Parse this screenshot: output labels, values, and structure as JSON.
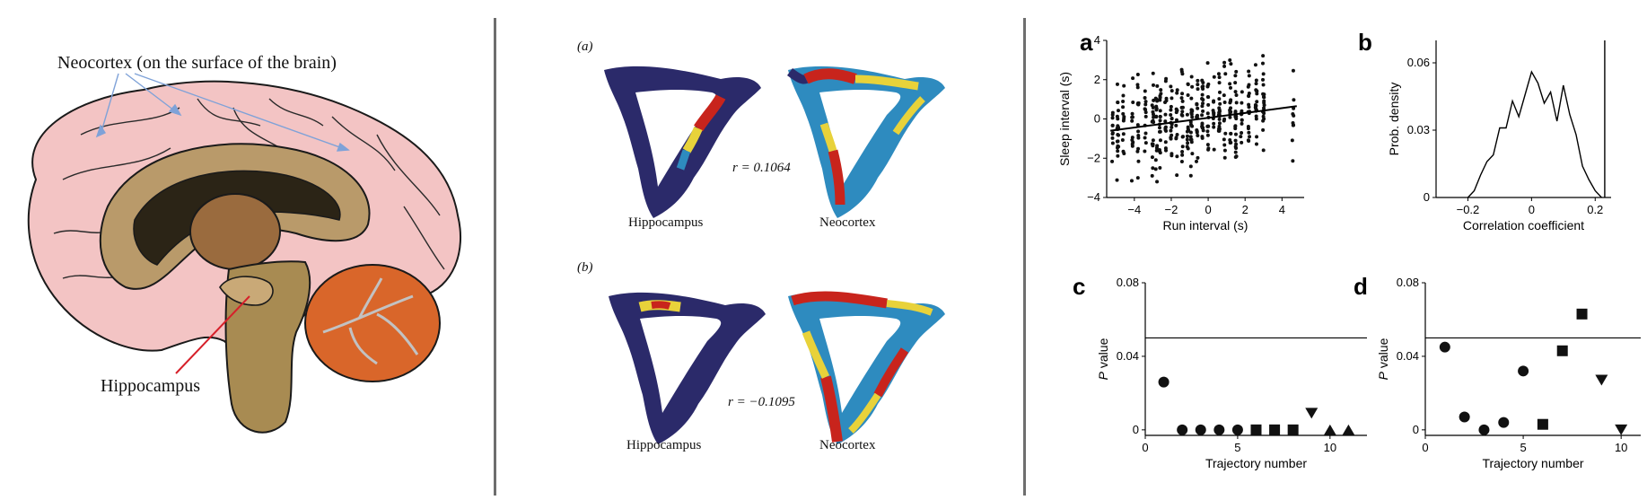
{
  "brain": {
    "neocortex_label": "Neocortex (on the surface of the brain)",
    "hippocampus_label": "Hippocampus",
    "colors": {
      "cortex": "#f3c4c4",
      "inner": "#b99a6a",
      "dark": "#2b2416",
      "thalamus": "#9a6b3e",
      "cerebellum": "#d9662a",
      "brainstem": "#a88b52",
      "pointer": "#d6202a",
      "arrows": "#7fa2d8"
    }
  },
  "trajectories": {
    "a": {
      "label": "(a)",
      "r_text": "r = 0.1064",
      "left": "Hippocampus",
      "right": "Neocortex"
    },
    "b": {
      "label": "(b)",
      "r_text": "r = −0.1095",
      "left": "Hippocampus",
      "right": "Neocortex"
    },
    "colors": {
      "base": "#2b2a6a",
      "mid": "#2e8bbf",
      "warm": "#e8d23a",
      "hot": "#c8241c"
    }
  },
  "chart_data": [
    {
      "panel": "a",
      "type": "scatter",
      "xlabel": "Run interval (s)",
      "ylabel": "Sleep interval (s)",
      "xlim": [
        -5.5,
        5.2
      ],
      "ylim": [
        -4,
        4
      ],
      "xticks": [
        -4,
        -2,
        0,
        2,
        4
      ],
      "yticks": [
        -4,
        -2,
        0,
        2,
        4
      ],
      "columns_x": [
        -5.2,
        -4.9,
        -4.6,
        -4.1,
        -3.8,
        -3.4,
        -3.0,
        -2.8,
        -2.6,
        -2.3,
        -2.0,
        -1.7,
        -1.4,
        -1.1,
        -0.9,
        -0.6,
        -0.3,
        0.0,
        0.3,
        0.6,
        0.9,
        1.2,
        1.5,
        1.8,
        2.2,
        2.6,
        3.0,
        4.6
      ],
      "fit_line": {
        "x": [
          -5.3,
          4.8
        ],
        "y": [
          -0.6,
          0.65
        ]
      }
    },
    {
      "panel": "b",
      "type": "line",
      "xlabel": "Correlation coefficient",
      "ylabel": "Prob. density",
      "xlim": [
        -0.3,
        0.25
      ],
      "ylim": [
        0,
        0.07
      ],
      "xticks": [
        -0.2,
        0,
        0.2
      ],
      "yticks": [
        0,
        0.03,
        0.06
      ],
      "x": [
        -0.2,
        -0.18,
        -0.16,
        -0.14,
        -0.12,
        -0.1,
        -0.08,
        -0.06,
        -0.04,
        -0.02,
        0.0,
        0.02,
        0.04,
        0.06,
        0.08,
        0.1,
        0.12,
        0.14,
        0.16,
        0.18,
        0.2,
        0.22
      ],
      "y": [
        0.0,
        0.003,
        0.01,
        0.016,
        0.019,
        0.031,
        0.031,
        0.043,
        0.036,
        0.046,
        0.056,
        0.051,
        0.042,
        0.047,
        0.034,
        0.05,
        0.037,
        0.028,
        0.014,
        0.008,
        0.003,
        0.0
      ],
      "vline_x": 0.23
    },
    {
      "panel": "c",
      "type": "scatter",
      "xlabel": "Trajectory number",
      "ylabel": "P value",
      "xlim": [
        0,
        12
      ],
      "ylim": [
        -0.003,
        0.08
      ],
      "xticks": [
        0,
        5,
        10
      ],
      "yticks": [
        0,
        0.04,
        0.08
      ],
      "hline_y": 0.05,
      "points": [
        {
          "x": 1,
          "y": 0.026,
          "marker": "circle"
        },
        {
          "x": 2,
          "y": 0.0,
          "marker": "circle"
        },
        {
          "x": 3,
          "y": 0.0,
          "marker": "circle"
        },
        {
          "x": 4,
          "y": 0.0,
          "marker": "circle"
        },
        {
          "x": 5,
          "y": 0.0,
          "marker": "circle"
        },
        {
          "x": 6,
          "y": 0.0,
          "marker": "square"
        },
        {
          "x": 7,
          "y": 0.0,
          "marker": "square"
        },
        {
          "x": 8,
          "y": 0.0,
          "marker": "square"
        },
        {
          "x": 9,
          "y": 0.009,
          "marker": "triangle-down"
        },
        {
          "x": 10,
          "y": 0.0,
          "marker": "triangle-up"
        },
        {
          "x": 11,
          "y": 0.0,
          "marker": "triangle-up"
        }
      ]
    },
    {
      "panel": "d",
      "type": "scatter",
      "xlabel": "Trajectory number",
      "ylabel": "P value",
      "xlim": [
        0,
        11
      ],
      "ylim": [
        -0.003,
        0.08
      ],
      "xticks": [
        0,
        5,
        10
      ],
      "yticks": [
        0,
        0.04,
        0.08
      ],
      "hline_y": 0.05,
      "points": [
        {
          "x": 1,
          "y": 0.045,
          "marker": "circle"
        },
        {
          "x": 2,
          "y": 0.007,
          "marker": "circle"
        },
        {
          "x": 3,
          "y": 0.0,
          "marker": "circle"
        },
        {
          "x": 4,
          "y": 0.004,
          "marker": "circle"
        },
        {
          "x": 5,
          "y": 0.032,
          "marker": "circle"
        },
        {
          "x": 6,
          "y": 0.003,
          "marker": "square"
        },
        {
          "x": 7,
          "y": 0.043,
          "marker": "square"
        },
        {
          "x": 8,
          "y": 0.063,
          "marker": "square"
        },
        {
          "x": 9,
          "y": 0.027,
          "marker": "triangle-down"
        },
        {
          "x": 10,
          "y": 0.0,
          "marker": "triangle-down"
        }
      ]
    }
  ]
}
